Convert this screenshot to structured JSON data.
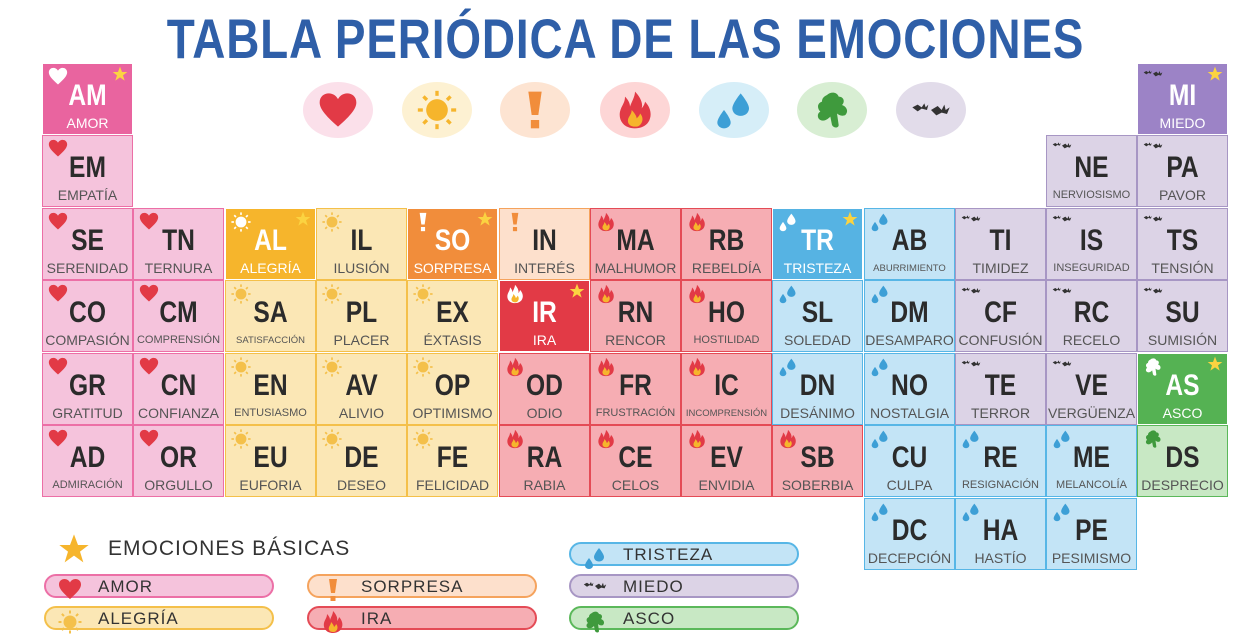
{
  "title": "TABLA PERIÓDICA DE LAS EMOCIONES",
  "colors": {
    "amor": "#e9649f",
    "alegria": "#f6b52c",
    "sorpresa": "#f18d3b",
    "ira": "#e23a46",
    "tristeza": "#56b3e3",
    "miedo": "#9c83c6",
    "asco": "#55b253",
    "title": "#2f5fa8"
  },
  "icons": {
    "amor": "heart-icon",
    "alegria": "sun-icon",
    "sorpresa": "exclamation-icon",
    "ira": "fire-icon",
    "tristeza": "droplets-icon",
    "miedo": "bats-icon",
    "asco": "slime-icon",
    "basic": "star-icon"
  },
  "elements": [
    {
      "sym": "AM",
      "name": "AMOR",
      "cat": "amor",
      "basic": true
    },
    {
      "sym": "EM",
      "name": "EMPATÍA",
      "cat": "amor"
    },
    {
      "sym": "SE",
      "name": "SERENIDAD",
      "cat": "amor"
    },
    {
      "sym": "CO",
      "name": "COMPASIÓN",
      "cat": "amor"
    },
    {
      "sym": "GR",
      "name": "GRATITUD",
      "cat": "amor"
    },
    {
      "sym": "AD",
      "name": "ADMIRACIÓN",
      "cat": "amor"
    },
    {
      "sym": "TN",
      "name": "TERNURA",
      "cat": "amor"
    },
    {
      "sym": "CM",
      "name": "COMPRENSIÓN",
      "cat": "amor"
    },
    {
      "sym": "CN",
      "name": "CONFIANZA",
      "cat": "amor"
    },
    {
      "sym": "OR",
      "name": "ORGULLO",
      "cat": "amor"
    },
    {
      "sym": "AL",
      "name": "ALEGRÍA",
      "cat": "alegria",
      "basic": true
    },
    {
      "sym": "SA",
      "name": "SATISFACCIÓN",
      "cat": "alegria"
    },
    {
      "sym": "EN",
      "name": "ENTUSIASMO",
      "cat": "alegria"
    },
    {
      "sym": "EU",
      "name": "EUFORIA",
      "cat": "alegria"
    },
    {
      "sym": "IL",
      "name": "ILUSIÓN",
      "cat": "alegria"
    },
    {
      "sym": "PL",
      "name": "PLACER",
      "cat": "alegria"
    },
    {
      "sym": "AV",
      "name": "ALIVIO",
      "cat": "alegria"
    },
    {
      "sym": "DE",
      "name": "DESEO",
      "cat": "alegria"
    },
    {
      "sym": "SO",
      "name": "SORPRESA",
      "cat": "sorpresa",
      "basic": true
    },
    {
      "sym": "EX",
      "name": "ÉXTASIS",
      "cat": "alegria"
    },
    {
      "sym": "OP",
      "name": "OPTIMISMO",
      "cat": "alegria"
    },
    {
      "sym": "FE",
      "name": "FELICIDAD",
      "cat": "alegria"
    },
    {
      "sym": "IN",
      "name": "INTERÉS",
      "cat": "sorpresa"
    },
    {
      "sym": "IR",
      "name": "IRA",
      "cat": "ira",
      "basic": true
    },
    {
      "sym": "OD",
      "name": "ODIO",
      "cat": "ira"
    },
    {
      "sym": "RA",
      "name": "RABIA",
      "cat": "ira"
    },
    {
      "sym": "MA",
      "name": "MALHUMOR",
      "cat": "ira"
    },
    {
      "sym": "RN",
      "name": "RENCOR",
      "cat": "ira"
    },
    {
      "sym": "FR",
      "name": "FRUSTRACIÓN",
      "cat": "ira"
    },
    {
      "sym": "CE",
      "name": "CELOS",
      "cat": "ira"
    },
    {
      "sym": "RB",
      "name": "REBELDÍA",
      "cat": "ira"
    },
    {
      "sym": "HO",
      "name": "HOSTILIDAD",
      "cat": "ira"
    },
    {
      "sym": "IC",
      "name": "INCOMPRENSIÓN",
      "cat": "ira"
    },
    {
      "sym": "EV",
      "name": "ENVIDIA",
      "cat": "ira"
    },
    {
      "sym": "TR",
      "name": "TRISTEZA",
      "cat": "tristeza",
      "basic": true
    },
    {
      "sym": "SL",
      "name": "SOLEDAD",
      "cat": "tristeza"
    },
    {
      "sym": "DN",
      "name": "DESÁNIMO",
      "cat": "tristeza"
    },
    {
      "sym": "SB",
      "name": "SOBERBIA",
      "cat": "ira"
    },
    {
      "sym": "AB",
      "name": "ABURRIMIENTO",
      "cat": "tristeza"
    },
    {
      "sym": "DM",
      "name": "DESAMPARO",
      "cat": "tristeza"
    },
    {
      "sym": "NO",
      "name": "NOSTALGIA",
      "cat": "tristeza"
    },
    {
      "sym": "CU",
      "name": "CULPA",
      "cat": "tristeza"
    },
    {
      "sym": "DC",
      "name": "DECEPCIÓN",
      "cat": "tristeza"
    },
    {
      "sym": "TI",
      "name": "TIMIDEZ",
      "cat": "miedo"
    },
    {
      "sym": "CF",
      "name": "CONFUSIÓN",
      "cat": "miedo"
    },
    {
      "sym": "TE",
      "name": "TERROR",
      "cat": "miedo"
    },
    {
      "sym": "RE",
      "name": "RESIGNACIÓN",
      "cat": "tristeza"
    },
    {
      "sym": "HA",
      "name": "HASTÍO",
      "cat": "tristeza"
    },
    {
      "sym": "NE",
      "name": "NERVIOSISMO",
      "cat": "miedo"
    },
    {
      "sym": "IS",
      "name": "INSEGURIDAD",
      "cat": "miedo"
    },
    {
      "sym": "RC",
      "name": "RECELO",
      "cat": "miedo"
    },
    {
      "sym": "VE",
      "name": "VERGÜENZA",
      "cat": "miedo"
    },
    {
      "sym": "ME",
      "name": "MELANCOLÍA",
      "cat": "tristeza"
    },
    {
      "sym": "PE",
      "name": "PESIMISMO",
      "cat": "tristeza"
    },
    {
      "sym": "MI",
      "name": "MIEDO",
      "cat": "miedo",
      "basic": true
    },
    {
      "sym": "PA",
      "name": "PAVOR",
      "cat": "miedo"
    },
    {
      "sym": "TS",
      "name": "TENSIÓN",
      "cat": "miedo"
    },
    {
      "sym": "SU",
      "name": "SUMISIÓN",
      "cat": "miedo"
    },
    {
      "sym": "AS",
      "name": "ASCO",
      "cat": "asco",
      "basic": true
    },
    {
      "sym": "DS",
      "name": "DESPRECIO",
      "cat": "asco"
    }
  ],
  "top_icons": [
    "amor",
    "alegria",
    "sorpresa",
    "ira",
    "tristeza",
    "asco",
    "miedo"
  ],
  "legend": {
    "title": "EMOCIONES BÁSICAS",
    "items": [
      {
        "label": "AMOR",
        "cat": "amor"
      },
      {
        "label": "ALEGRÍA",
        "cat": "alegria"
      },
      {
        "label": "SORPRESA",
        "cat": "sorpresa"
      },
      {
        "label": "IRA",
        "cat": "ira"
      },
      {
        "label": "TRISTEZA",
        "cat": "tristeza"
      },
      {
        "label": "MIEDO",
        "cat": "miedo"
      },
      {
        "label": "ASCO",
        "cat": "asco"
      }
    ]
  }
}
